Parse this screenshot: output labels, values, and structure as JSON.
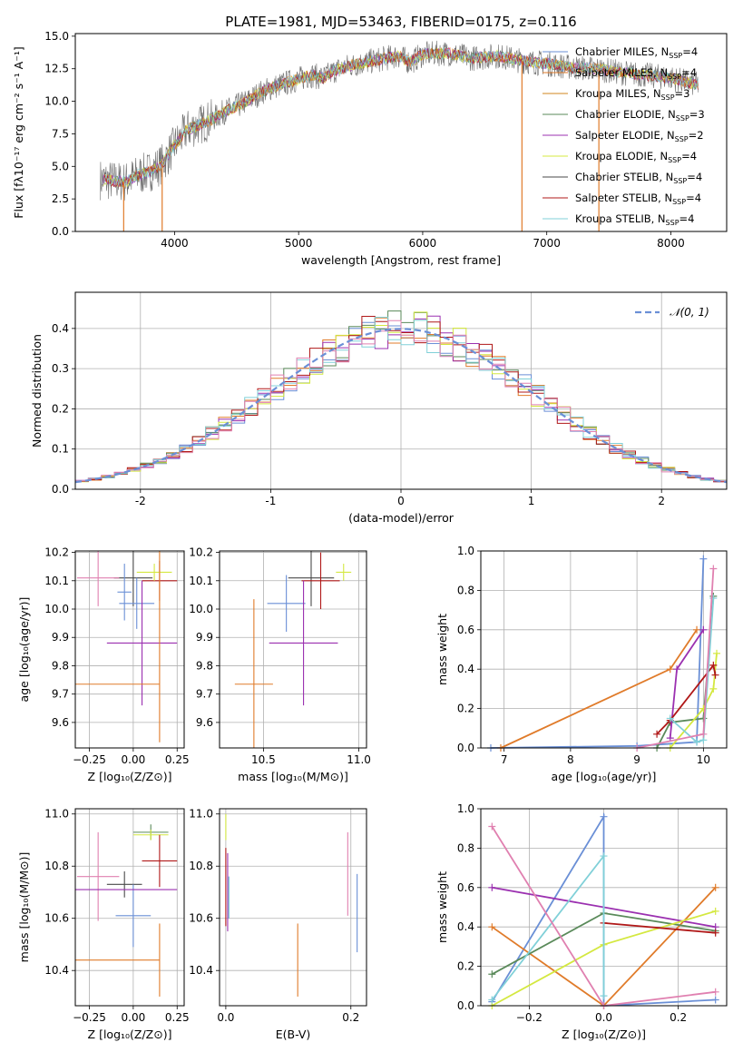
{
  "page_title": "PLATE=1981, MJD=53463, FIBERID=0175, z=0.116",
  "colors": {
    "blue": "#6a8fd6",
    "orange": "#e07b2a",
    "darkorange": "#d0851e",
    "green": "#5a8a5a",
    "purple": "#9b30b0",
    "lime": "#d4e840",
    "dark": "#4a4a4a",
    "red": "#b01818",
    "cyan": "#80d0d8",
    "pink": "#e080b0",
    "grid": "#b0b0b0"
  },
  "chart_data": [
    {
      "id": "spectrum",
      "type": "line",
      "title": "PLATE=1981, MJD=53463, FIBERID=0175, z=0.116",
      "xlabel": "wavelength [Angstrom, rest frame]",
      "ylabel": "Flux [fλ10⁻¹⁷ erg cm⁻² s⁻¹ A⁻¹]",
      "xlim": [
        3200,
        8450
      ],
      "ylim": [
        0,
        15.2
      ],
      "xticks": [
        4000,
        5000,
        6000,
        7000,
        8000
      ],
      "yticks": [
        0.0,
        2.5,
        5.0,
        7.5,
        10.0,
        12.5,
        15.0
      ],
      "ytick_labels": [
        "0.0",
        "2.5",
        "5.0",
        "7.5",
        "10.0",
        "12.5",
        "15.0"
      ],
      "legend_position": "top-right",
      "legend": [
        {
          "label": "Chabrier MILES, N",
          "sub": "SSP",
          "tail": "=4",
          "color": "blue"
        },
        {
          "label": "Salpeter MILES, N",
          "sub": "SSP",
          "tail": "=4",
          "color": "orange"
        },
        {
          "label": "Kroupa MILES, N",
          "sub": "SSP",
          "tail": "=3",
          "color": "darkorange"
        },
        {
          "label": "Chabrier ELODIE, N",
          "sub": "SSP",
          "tail": "=3",
          "color": "green"
        },
        {
          "label": "Salpeter ELODIE, N",
          "sub": "SSP",
          "tail": "=2",
          "color": "purple"
        },
        {
          "label": "Kroupa ELODIE, N",
          "sub": "SSP",
          "tail": "=4",
          "color": "lime"
        },
        {
          "label": "Chabrier STELIB, N",
          "sub": "SSP",
          "tail": "=4",
          "color": "dark"
        },
        {
          "label": "Salpeter STELIB, N",
          "sub": "SSP",
          "tail": "=4",
          "color": "red"
        },
        {
          "label": "Kroupa STELIB, N",
          "sub": "SSP",
          "tail": "=4",
          "color": "cyan"
        }
      ],
      "continuum": [
        [
          3400,
          4.0
        ],
        [
          3600,
          3.8
        ],
        [
          3700,
          4.3
        ],
        [
          3800,
          4.6
        ],
        [
          3900,
          5.2
        ],
        [
          4000,
          6.6
        ],
        [
          4100,
          7.8
        ],
        [
          4200,
          8.2
        ],
        [
          4300,
          8.6
        ],
        [
          4400,
          9.2
        ],
        [
          4500,
          9.6
        ],
        [
          4600,
          10.1
        ],
        [
          4700,
          10.7
        ],
        [
          4800,
          11.1
        ],
        [
          4900,
          11.4
        ],
        [
          5000,
          11.7
        ],
        [
          5100,
          12.0
        ],
        [
          5200,
          11.8
        ],
        [
          5300,
          12.4
        ],
        [
          5400,
          12.7
        ],
        [
          5500,
          12.9
        ],
        [
          5600,
          13.1
        ],
        [
          5700,
          13.3
        ],
        [
          5800,
          13.5
        ],
        [
          5900,
          13.0
        ],
        [
          6000,
          13.6
        ],
        [
          6200,
          13.7
        ],
        [
          6400,
          13.3
        ],
        [
          6600,
          13.5
        ],
        [
          6800,
          13.1
        ],
        [
          7000,
          12.9
        ],
        [
          7200,
          12.6
        ],
        [
          7400,
          12.5
        ],
        [
          7600,
          12.2
        ],
        [
          7800,
          12.0
        ],
        [
          8000,
          11.8
        ],
        [
          8200,
          11.3
        ]
      ],
      "spikes": [
        [
          3590,
          0
        ],
        [
          3900,
          0
        ],
        [
          6800,
          0
        ],
        [
          7420,
          0
        ]
      ]
    },
    {
      "id": "residuals",
      "type": "histogram",
      "xlabel": "(data-model)/error",
      "ylabel": "Normed distribution",
      "xlim": [
        -2.5,
        2.5
      ],
      "ylim": [
        0,
        0.49
      ],
      "xticks": [
        -2,
        -1,
        0,
        1,
        2
      ],
      "yticks": [
        0.0,
        0.1,
        0.2,
        0.3,
        0.4
      ],
      "ytick_labels": [
        "0.0",
        "0.1",
        "0.2",
        "0.3",
        "0.4"
      ],
      "legend": {
        "label": "𝒩(0, 1)",
        "color": "blue"
      },
      "legend_position": "top-right",
      "bin_width": 0.1,
      "series_colors": [
        "blue",
        "orange",
        "green",
        "purple",
        "lime",
        "red",
        "cyan",
        "pink"
      ]
    },
    {
      "id": "age-vs-Z",
      "type": "scatter",
      "xlabel": "Z [log₁₀(Z/Z⊙)]",
      "ylabel": "age  [log₁₀(age/yr)]",
      "xlim": [
        -0.33,
        0.29
      ],
      "ylim": [
        9.51,
        10.205
      ],
      "xticks": [
        -0.25,
        0.0,
        0.25
      ],
      "xtick_labels": [
        "−0.25",
        "0.00",
        "0.25"
      ],
      "yticks": [
        9.6,
        9.7,
        9.8,
        9.9,
        10.0,
        10.1,
        10.2
      ],
      "ytick_labels": [
        "9.6",
        "9.7",
        "9.8",
        "9.9",
        "10.0",
        "10.1",
        "10.2"
      ],
      "points": [
        {
          "x": 0.0,
          "xerr": 0.11,
          "y": 10.11,
          "yerr": 0.1,
          "color": "dark"
        },
        {
          "x": -0.2,
          "xerr": 0.12,
          "y": 10.11,
          "yerr": 0.1,
          "color": "pink"
        },
        {
          "x": 0.15,
          "xerr": 0.1,
          "y": 10.1,
          "yerr": 0.07,
          "color": "red"
        },
        {
          "x": 0.12,
          "xerr": 0.1,
          "y": 10.13,
          "yerr": 0.03,
          "color": "lime"
        },
        {
          "x": 0.02,
          "xerr": 0.1,
          "y": 10.02,
          "yerr": 0.09,
          "color": "blue"
        },
        {
          "x": -0.05,
          "xerr": 0.04,
          "y": 10.06,
          "yerr": 0.1,
          "color": "blue"
        },
        {
          "x": 0.05,
          "xerr": 0.2,
          "y": 9.88,
          "yerr": 0.22,
          "color": "purple"
        },
        {
          "x": 0.15,
          "xerr": 0.0,
          "y": 9.93,
          "yerr": 0.4,
          "color": "orange"
        },
        {
          "x": -0.15,
          "xerr": 0.3,
          "y": 9.735,
          "yerr": 0.0,
          "color": "orange"
        }
      ]
    },
    {
      "id": "age-vs-mass",
      "type": "scatter",
      "xlabel": "mass [log₁₀(M/M⊙)]",
      "ylabel": "",
      "xlim": [
        10.27,
        11.04
      ],
      "ylim": [
        9.51,
        10.205
      ],
      "xticks": [
        10.5,
        11.0
      ],
      "xtick_labels": [
        "10.5",
        "11.0"
      ],
      "yticks": [
        9.6,
        9.7,
        9.8,
        9.9,
        10.0,
        10.1,
        10.2
      ],
      "ytick_labels": [
        "9.6",
        "9.7",
        "9.8",
        "9.9",
        "10.0",
        "10.1",
        "10.2"
      ],
      "points": [
        {
          "x": 10.75,
          "xerr": 0.12,
          "y": 10.11,
          "yerr": 0.1,
          "color": "dark"
        },
        {
          "x": 10.8,
          "xerr": 0.1,
          "y": 10.1,
          "yerr": 0.1,
          "color": "red"
        },
        {
          "x": 10.92,
          "xerr": 0.04,
          "y": 10.13,
          "yerr": 0.03,
          "color": "lime"
        },
        {
          "x": 10.62,
          "xerr": 0.1,
          "y": 10.02,
          "yerr": 0.1,
          "color": "blue"
        },
        {
          "x": 10.71,
          "xerr": 0.18,
          "y": 9.88,
          "yerr": 0.22,
          "color": "purple"
        },
        {
          "x": 10.45,
          "xerr": 0.1,
          "y": 9.735,
          "yerr": 0.3,
          "color": "orange"
        }
      ]
    },
    {
      "id": "weight-vs-age",
      "type": "line",
      "xlabel": "age  [log₁₀(age/yr)]",
      "ylabel": "mass weight",
      "xlim": [
        6.65,
        10.35
      ],
      "ylim": [
        0,
        1.0
      ],
      "xticks": [
        7,
        8,
        9,
        10
      ],
      "yticks": [
        0.0,
        0.2,
        0.4,
        0.6,
        0.8,
        1.0
      ],
      "ytick_labels": [
        "0.0",
        "0.2",
        "0.4",
        "0.6",
        "0.8",
        "1.0"
      ],
      "series": [
        {
          "color": "blue",
          "points": [
            [
              6.8,
              0.0
            ],
            [
              9.0,
              0.01
            ],
            [
              9.9,
              0.03
            ],
            [
              10.0,
              0.96
            ]
          ]
        },
        {
          "color": "orange",
          "points": [
            [
              6.95,
              0.0
            ],
            [
              9.5,
              0.4
            ],
            [
              9.9,
              0.6
            ]
          ]
        },
        {
          "color": "green",
          "points": [
            [
              9.3,
              0.0
            ],
            [
              9.5,
              0.13
            ],
            [
              10.0,
              0.15
            ],
            [
              10.15,
              0.77
            ]
          ]
        },
        {
          "color": "purple",
          "points": [
            [
              9.5,
              0.05
            ],
            [
              9.6,
              0.4
            ],
            [
              10.0,
              0.6
            ]
          ]
        },
        {
          "color": "lime",
          "points": [
            [
              9.5,
              0.0
            ],
            [
              10.0,
              0.2
            ],
            [
              10.15,
              0.3
            ],
            [
              10.2,
              0.48
            ]
          ]
        },
        {
          "color": "red",
          "points": [
            [
              9.3,
              0.07
            ],
            [
              9.5,
              0.14
            ],
            [
              10.15,
              0.42
            ],
            [
              10.18,
              0.37
            ]
          ]
        },
        {
          "color": "cyan",
          "points": [
            [
              9.5,
              0.15
            ],
            [
              9.9,
              0.03
            ],
            [
              10.0,
              0.04
            ],
            [
              10.15,
              0.76
            ]
          ]
        },
        {
          "color": "pink",
          "points": [
            [
              9.0,
              0.0
            ],
            [
              10.0,
              0.07
            ],
            [
              10.15,
              0.91
            ]
          ]
        }
      ]
    },
    {
      "id": "mass-vs-Z",
      "type": "scatter",
      "xlabel": "Z [log₁₀(Z/Z⊙)]",
      "ylabel": "mass [log₁₀(M/M⊙)]",
      "xlim": [
        -0.33,
        0.29
      ],
      "ylim": [
        10.265,
        11.02
      ],
      "xticks": [
        -0.25,
        0.0,
        0.25
      ],
      "xtick_labels": [
        "−0.25",
        "0.00",
        "0.25"
      ],
      "yticks": [
        10.4,
        10.6,
        10.8,
        11.0
      ],
      "ytick_labels": [
        "10.4",
        "10.6",
        "10.8",
        "11.0"
      ],
      "points": [
        {
          "x": 0.1,
          "xerr": 0.1,
          "y": 10.93,
          "yerr": 0.03,
          "color": "green"
        },
        {
          "x": 0.1,
          "xerr": 0.1,
          "y": 10.92,
          "yerr": 0.02,
          "color": "lime"
        },
        {
          "x": -0.2,
          "xerr": 0.12,
          "y": 10.76,
          "yerr": 0.17,
          "color": "pink"
        },
        {
          "x": 0.15,
          "xerr": 0.1,
          "y": 10.82,
          "yerr": 0.1,
          "color": "red"
        },
        {
          "x": -0.05,
          "xerr": 0.1,
          "y": 10.73,
          "yerr": 0.05,
          "color": "dark"
        },
        {
          "x": 0.0,
          "xerr": 0.1,
          "y": 10.61,
          "yerr": 0.12,
          "color": "blue"
        },
        {
          "x": -0.05,
          "xerr": 0.3,
          "y": 10.71,
          "yerr": 0.0,
          "color": "purple"
        },
        {
          "x": -0.15,
          "xerr": 0.3,
          "y": 10.44,
          "yerr": 0.0,
          "color": "orange"
        },
        {
          "x": 0.15,
          "xerr": 0.0,
          "y": 10.44,
          "yerr": 0.14,
          "color": "orange"
        }
      ]
    },
    {
      "id": "mass-vs-ebv",
      "type": "scatter",
      "xlabel": "E(B-V)",
      "ylabel": "",
      "xlim": [
        -0.01,
        0.225
      ],
      "ylim": [
        10.265,
        11.02
      ],
      "xticks": [
        0.0,
        0.2
      ],
      "xtick_labels": [
        "0.0",
        "0.2"
      ],
      "yticks": [
        10.4,
        10.6,
        10.8,
        11.0
      ],
      "ytick_labels": [
        "10.4",
        "10.6",
        "10.8",
        "11.0"
      ],
      "points": [
        {
          "x": 0.0,
          "xerr": 0.0,
          "y": 10.95,
          "yerr": 0.05,
          "color": "lime"
        },
        {
          "x": 0.0,
          "xerr": 0.0,
          "y": 10.72,
          "yerr": 0.15,
          "color": "red"
        },
        {
          "x": 0.003,
          "xerr": 0.0,
          "y": 10.7,
          "yerr": 0.15,
          "color": "purple"
        },
        {
          "x": 0.005,
          "xerr": 0.0,
          "y": 10.68,
          "yerr": 0.08,
          "color": "blue"
        },
        {
          "x": 0.005,
          "xerr": 0.0,
          "y": 10.68,
          "yerr": 0.08,
          "color": "cyan"
        },
        {
          "x": 0.115,
          "xerr": 0.0,
          "y": 10.44,
          "yerr": 0.14,
          "color": "orange"
        },
        {
          "x": 0.195,
          "xerr": 0.0,
          "y": 10.77,
          "yerr": 0.16,
          "color": "pink"
        },
        {
          "x": 0.21,
          "xerr": 0.0,
          "y": 10.62,
          "yerr": 0.15,
          "color": "blue"
        }
      ]
    },
    {
      "id": "weight-vs-Z",
      "type": "line",
      "xlabel": "Z [log₁₀(Z/Z⊙)]",
      "ylabel": "mass weight",
      "xlim": [
        -0.33,
        0.33
      ],
      "ylim": [
        0,
        1.0
      ],
      "xticks": [
        -0.2,
        0.0,
        0.2
      ],
      "xtick_labels": [
        "−0.2",
        "0.0",
        "0.2"
      ],
      "yticks": [
        0.0,
        0.2,
        0.4,
        0.6,
        0.8,
        1.0
      ],
      "ytick_labels": [
        "0.0",
        "0.2",
        "0.4",
        "0.6",
        "0.8",
        "1.0"
      ],
      "series": [
        {
          "color": "blue",
          "points": [
            [
              -0.3,
              0.02
            ],
            [
              0.0,
              0.96
            ],
            [
              0.0,
              0.0
            ],
            [
              0.3,
              0.03
            ]
          ]
        },
        {
          "color": "orange",
          "points": [
            [
              -0.3,
              0.4
            ],
            [
              0.0,
              0.0
            ],
            [
              0.3,
              0.6
            ]
          ]
        },
        {
          "color": "green",
          "points": [
            [
              -0.3,
              0.16
            ],
            [
              0.0,
              0.47
            ],
            [
              0.3,
              0.38
            ]
          ]
        },
        {
          "color": "purple",
          "points": [
            [
              -0.3,
              0.6
            ],
            [
              0.3,
              0.4
            ]
          ]
        },
        {
          "color": "lime",
          "points": [
            [
              -0.3,
              0.0
            ],
            [
              0.0,
              0.31
            ],
            [
              0.3,
              0.48
            ]
          ]
        },
        {
          "color": "red",
          "points": [
            [
              0.0,
              0.42
            ],
            [
              0.3,
              0.37
            ]
          ]
        },
        {
          "color": "cyan",
          "points": [
            [
              -0.3,
              0.03
            ],
            [
              0.0,
              0.76
            ],
            [
              0.0,
              0.05
            ]
          ]
        },
        {
          "color": "pink",
          "points": [
            [
              -0.3,
              0.91
            ],
            [
              0.0,
              0.0
            ],
            [
              0.3,
              0.07
            ]
          ]
        }
      ]
    }
  ]
}
